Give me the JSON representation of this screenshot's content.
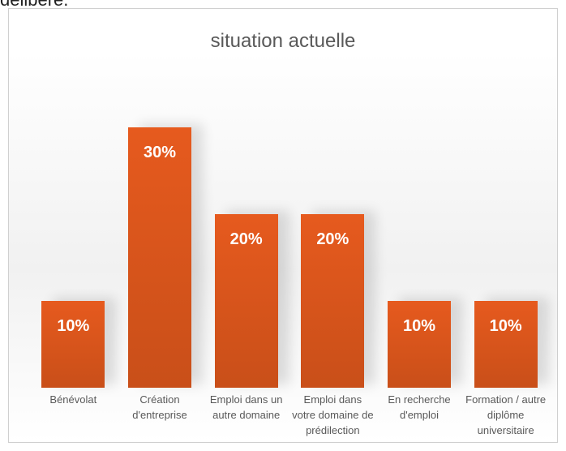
{
  "page_text": "délibéré.",
  "chart_data": {
    "type": "bar",
    "title": "situation actuelle",
    "categories": [
      "Bénévolat",
      "Création d'entreprise",
      "Emploi dans un autre domaine",
      "Emploi dans votre domaine de prédilection",
      "En recherche d'emploi",
      "Formation / autre diplôme universitaire"
    ],
    "values": [
      10,
      30,
      20,
      20,
      10,
      10
    ],
    "value_labels": [
      "10%",
      "30%",
      "20%",
      "20%",
      "10%",
      "10%"
    ],
    "color": "#e65a1e"
  }
}
